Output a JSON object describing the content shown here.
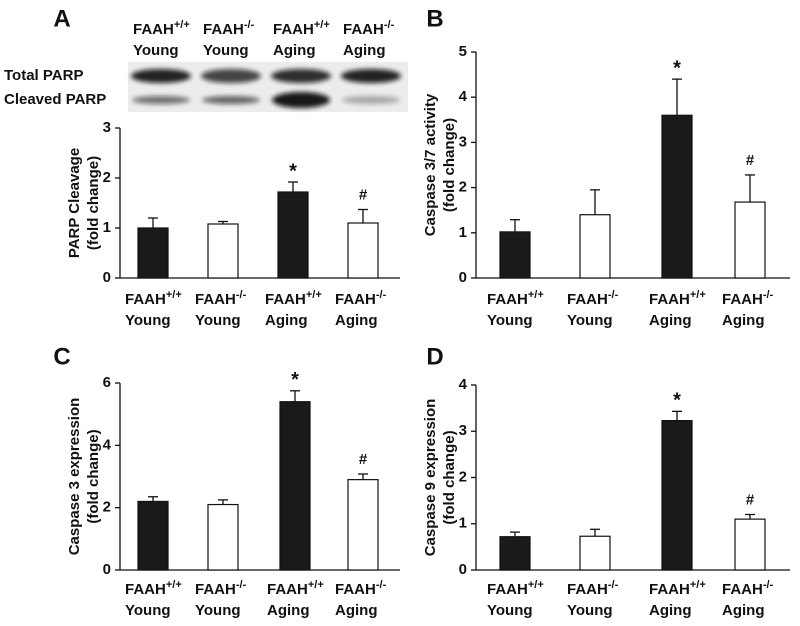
{
  "chart_data": [
    {
      "type": "bar",
      "panel": "A",
      "blot": {
        "rows": [
          "Total PARP",
          "Cleaved PARP"
        ]
      },
      "ylabel": [
        "PARP Cleavage",
        "(fold change)"
      ],
      "categories": [
        {
          "name": "FAAH",
          "sup": "+/+",
          "group": "Young"
        },
        {
          "name": "FAAH",
          "sup": "-/-",
          "group": "Young"
        },
        {
          "name": "FAAH",
          "sup": "+/+",
          "group": "Aging"
        },
        {
          "name": "FAAH",
          "sup": "-/-",
          "group": "Aging"
        }
      ],
      "values": [
        1.0,
        1.08,
        1.72,
        1.1
      ],
      "errors": [
        0.2,
        0.05,
        0.2,
        0.27
      ],
      "colors": [
        "#1a1a1a",
        "#ffffff",
        "#1a1a1a",
        "#ffffff"
      ],
      "bar_labels": [
        null,
        null,
        "*",
        "#"
      ],
      "ylim": [
        0,
        3
      ],
      "yticks": [
        0,
        1,
        2,
        3
      ]
    },
    {
      "type": "bar",
      "panel": "B",
      "ylabel": [
        "Caspase 3/7 activity",
        "(fold change)"
      ],
      "categories": [
        {
          "name": "FAAH",
          "sup": "+/+",
          "group": "Young"
        },
        {
          "name": "FAAH",
          "sup": "-/-",
          "group": "Young"
        },
        {
          "name": "FAAH",
          "sup": "+/+",
          "group": "Aging"
        },
        {
          "name": "FAAH",
          "sup": "-/-",
          "group": "Aging"
        }
      ],
      "values": [
        1.02,
        1.4,
        3.6,
        1.68
      ],
      "errors": [
        0.27,
        0.55,
        0.8,
        0.6
      ],
      "colors": [
        "#1a1a1a",
        "#ffffff",
        "#1a1a1a",
        "#ffffff"
      ],
      "bar_labels": [
        null,
        null,
        "*",
        "#"
      ],
      "ylim": [
        0,
        5
      ],
      "yticks": [
        0,
        1,
        2,
        3,
        4,
        5
      ]
    },
    {
      "type": "bar",
      "panel": "C",
      "ylabel": [
        "Caspase 3 expression",
        "(fold change)"
      ],
      "categories": [
        {
          "name": "FAAH",
          "sup": "+/+",
          "group": "Young"
        },
        {
          "name": "FAAH",
          "sup": "-/-",
          "group": "Young"
        },
        {
          "name": "FAAH",
          "sup": "+/+",
          "group": "Aging"
        },
        {
          "name": "FAAH",
          "sup": "-/-",
          "group": "Aging"
        }
      ],
      "values": [
        2.2,
        2.1,
        5.4,
        2.9
      ],
      "errors": [
        0.15,
        0.15,
        0.35,
        0.18
      ],
      "colors": [
        "#1a1a1a",
        "#ffffff",
        "#1a1a1a",
        "#ffffff"
      ],
      "bar_labels": [
        null,
        null,
        "*",
        "#"
      ],
      "ylim": [
        0,
        6
      ],
      "yticks": [
        0,
        2,
        4,
        6
      ]
    },
    {
      "type": "bar",
      "panel": "D",
      "ylabel": [
        "Caspase 9 expression",
        "(fold change)"
      ],
      "categories": [
        {
          "name": "FAAH",
          "sup": "+/+",
          "group": "Young"
        },
        {
          "name": "FAAH",
          "sup": "-/-",
          "group": "Young"
        },
        {
          "name": "FAAH",
          "sup": "+/+",
          "group": "Aging"
        },
        {
          "name": "FAAH",
          "sup": "-/-",
          "group": "Aging"
        }
      ],
      "values": [
        0.72,
        0.73,
        3.23,
        1.1
      ],
      "errors": [
        0.1,
        0.15,
        0.2,
        0.1
      ],
      "colors": [
        "#1a1a1a",
        "#ffffff",
        "#1a1a1a",
        "#ffffff"
      ],
      "bar_labels": [
        null,
        null,
        "*",
        "#"
      ],
      "ylim": [
        0,
        4
      ],
      "yticks": [
        0,
        1,
        2,
        3,
        4
      ]
    }
  ]
}
